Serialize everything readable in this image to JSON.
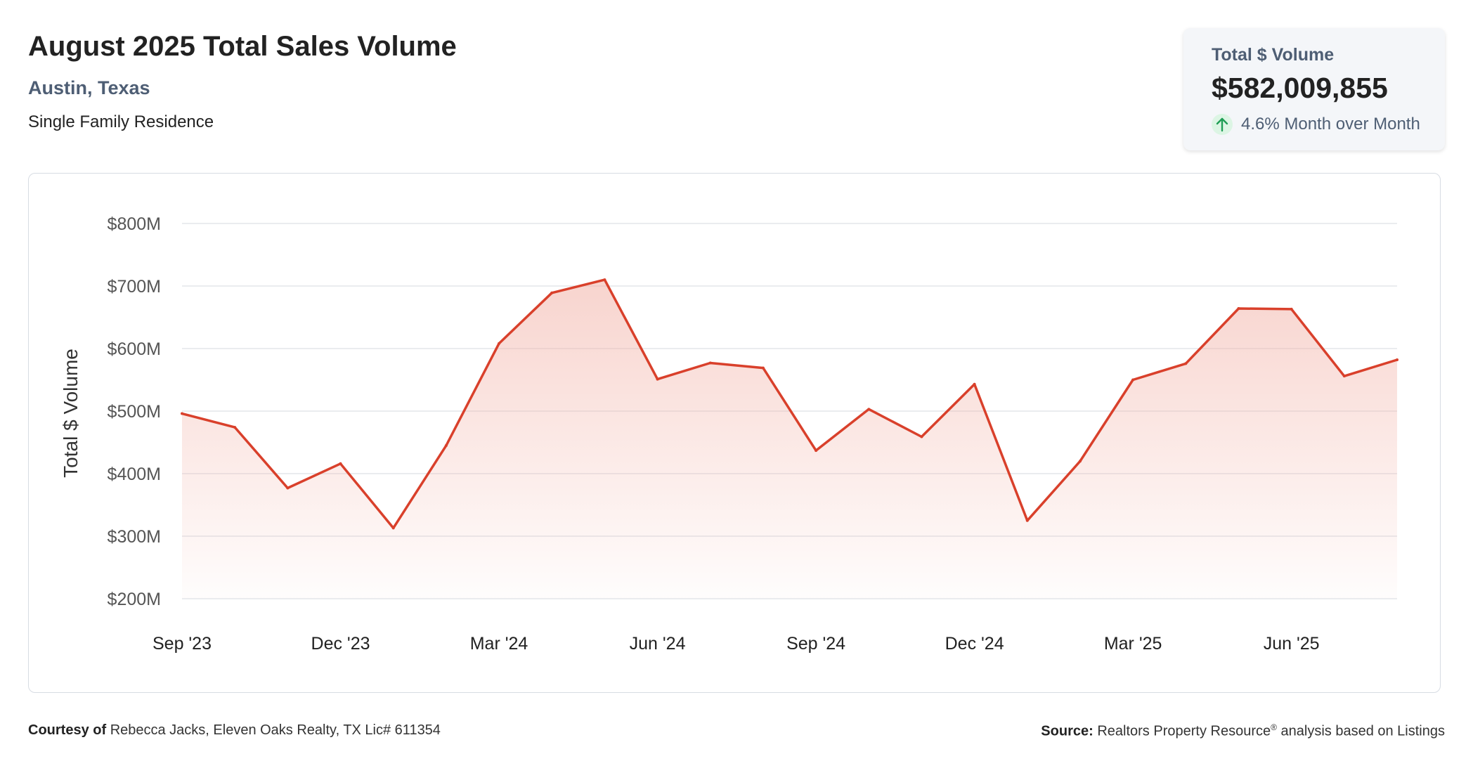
{
  "header": {
    "title": "August 2025 Total Sales Volume",
    "location": "Austin, Texas",
    "property_type": "Single Family Residence"
  },
  "stat_card": {
    "label": "Total $ Volume",
    "value": "$582,009,855",
    "change": "4.6% Month over Month",
    "change_direction": "up",
    "change_icon": "arrow-up-icon"
  },
  "footer": {
    "courtesy_label": "Courtesy of",
    "courtesy_text": "Rebecca Jacks, Eleven Oaks Realty, TX Lic# 611354",
    "source_label": "Source:",
    "source_text": "Realtors Property Resource",
    "source_mark": "®",
    "source_suffix": "analysis based on Listings"
  },
  "colors": {
    "line": "#d9402b",
    "fill_top": "#f2b1a6",
    "grid": "#e3e6ea",
    "axis_text": "#555555",
    "accent_up": "#1f9d55"
  },
  "chart_data": {
    "type": "area",
    "ylabel": "Total $ Volume",
    "xlabel": "",
    "ylim": [
      200,
      800
    ],
    "y_ticks": [
      200,
      300,
      400,
      500,
      600,
      700,
      800
    ],
    "y_tick_labels": [
      "$200M",
      "$300M",
      "$400M",
      "$500M",
      "$600M",
      "$700M",
      "$800M"
    ],
    "x_tick_labels": [
      "Sep '23",
      "Dec '23",
      "Mar '24",
      "Jun '24",
      "Sep '24",
      "Dec '24",
      "Mar '25",
      "Jun '25"
    ],
    "x_tick_indices": [
      0,
      3,
      6,
      9,
      12,
      15,
      18,
      21
    ],
    "grid": true,
    "legend": "none",
    "series": [
      {
        "values": [
          496,
          474,
          377,
          416,
          313,
          445,
          608,
          689,
          710,
          551,
          577,
          569,
          437,
          503,
          459,
          543,
          325,
          420,
          550,
          576,
          664,
          663,
          556,
          582
        ]
      }
    ]
  }
}
